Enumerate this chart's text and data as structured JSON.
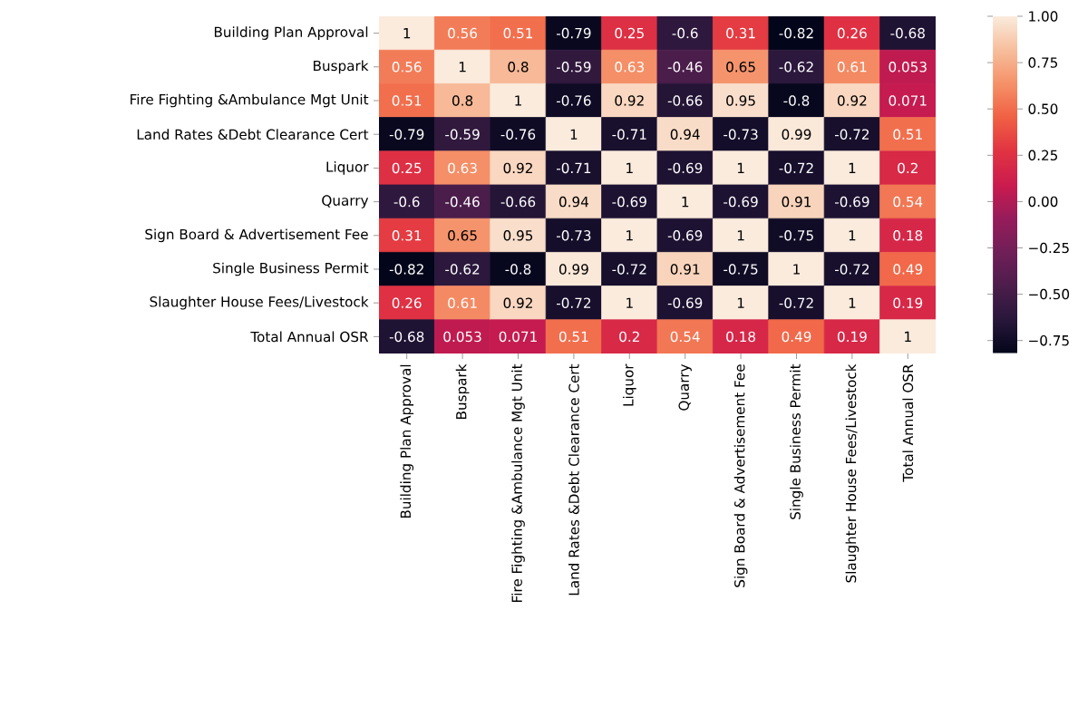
{
  "chart_data": {
    "type": "heatmap",
    "categories": [
      "Building Plan Approval",
      "Buspark",
      "Fire Fighting &Ambulance Mgt Unit",
      "Land Rates &Debt Clearance Cert",
      "Liquor",
      "Quarry",
      "Sign Board & Advertisement Fee",
      "Single Business Permit",
      "Slaughter House Fees/Livestock",
      "Total Annual OSR"
    ],
    "y_categories": [
      "Building Plan Approval",
      "Buspark",
      "Fire Fighting &Ambulance Mgt Unit",
      "Land Rates &Debt Clearance Cert",
      "Liquor",
      "Quarry",
      "Sign Board & Advertisement Fee",
      "Single Business Permit",
      "Slaughter House Fees/Livestock",
      "Total Annual OSR"
    ],
    "cells": [
      [
        1,
        0.56,
        0.51,
        -0.79,
        0.25,
        -0.6,
        0.31,
        -0.82,
        0.26,
        -0.68
      ],
      [
        0.56,
        1,
        0.8,
        -0.59,
        0.63,
        -0.46,
        0.65,
        -0.62,
        0.61,
        0.053
      ],
      [
        0.51,
        0.8,
        1,
        -0.76,
        0.92,
        -0.66,
        0.95,
        -0.8,
        0.92,
        0.071
      ],
      [
        -0.79,
        -0.59,
        -0.76,
        1,
        -0.71,
        0.94,
        -0.73,
        0.99,
        -0.72,
        0.51
      ],
      [
        0.25,
        0.63,
        0.92,
        -0.71,
        1,
        -0.69,
        1,
        -0.72,
        1,
        0.2
      ],
      [
        -0.6,
        -0.46,
        -0.66,
        0.94,
        -0.69,
        1,
        -0.69,
        0.91,
        -0.69,
        0.54
      ],
      [
        0.31,
        0.65,
        0.95,
        -0.73,
        1,
        -0.69,
        1,
        -0.75,
        1,
        0.18
      ],
      [
        -0.82,
        -0.62,
        -0.8,
        0.99,
        -0.72,
        0.91,
        -0.75,
        1,
        -0.72,
        0.49
      ],
      [
        0.26,
        0.61,
        0.92,
        -0.72,
        1,
        -0.69,
        1,
        -0.72,
        1,
        0.19
      ],
      [
        -0.68,
        0.053,
        0.071,
        0.51,
        0.2,
        0.54,
        0.18,
        0.49,
        0.19,
        1
      ]
    ],
    "data_labels": true,
    "clim": [
      -0.82,
      1
    ],
    "cticks": [
      {
        "value": -0.75,
        "label": "−0.75"
      },
      {
        "value": -0.5,
        "label": "−0.50"
      },
      {
        "value": -0.25,
        "label": "−0.25"
      },
      {
        "value": 0,
        "label": "0.00"
      },
      {
        "value": 0.25,
        "label": "0.25"
      },
      {
        "value": 0.5,
        "label": "0.50"
      },
      {
        "value": 0.75,
        "label": "0.75"
      },
      {
        "value": 1,
        "label": "1.00"
      }
    ]
  }
}
